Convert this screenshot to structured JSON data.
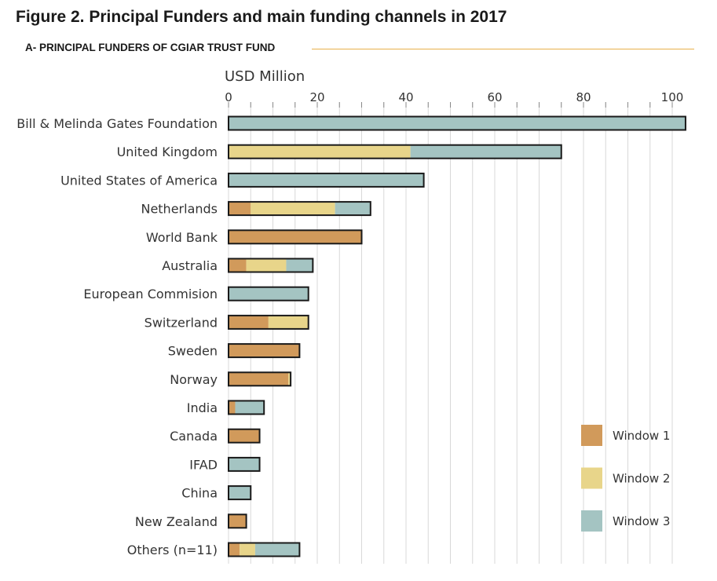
{
  "figure": {
    "title": "Figure 2. Principal Funders and main funding channels in 2017",
    "section_title": "A- PRINCIPAL FUNDERS OF CGIAR TRUST FUND",
    "rule_color": "#e8b04a"
  },
  "chart_data": {
    "type": "bar",
    "orientation": "horizontal",
    "stacked": true,
    "title": "",
    "xlabel": "USD Million",
    "ylabel": "",
    "xlim": [
      0,
      103
    ],
    "xticks": [
      0,
      20,
      40,
      60,
      80,
      100
    ],
    "grid": true,
    "legend_position": "bottom-right",
    "categories": [
      "Bill & Melinda Gates Foundation",
      "United Kingdom",
      "United States of America",
      "Netherlands",
      "World Bank",
      "Australia",
      "European Commision",
      "Switzerland",
      "Sweden",
      "Norway",
      "India",
      "Canada",
      "IFAD",
      "China",
      "New Zealand",
      "Others (n=11)"
    ],
    "series": [
      {
        "name": "Window 1",
        "color": "#d19a5b",
        "values": [
          0,
          0,
          0,
          5,
          30,
          4,
          0,
          9,
          16,
          13.5,
          1.5,
          7,
          0,
          0,
          4,
          2.5
        ]
      },
      {
        "name": "Window 2",
        "color": "#e8d58a",
        "values": [
          0,
          41,
          0,
          19,
          0,
          9,
          0,
          9,
          0,
          0.5,
          0,
          0,
          0,
          0,
          0,
          3.5
        ]
      },
      {
        "name": "Window 3",
        "color": "#a4c4c2",
        "values": [
          103,
          34,
          44,
          8,
          0,
          6,
          18,
          0,
          0,
          0,
          6.5,
          0,
          7,
          5,
          0,
          10
        ]
      }
    ]
  }
}
